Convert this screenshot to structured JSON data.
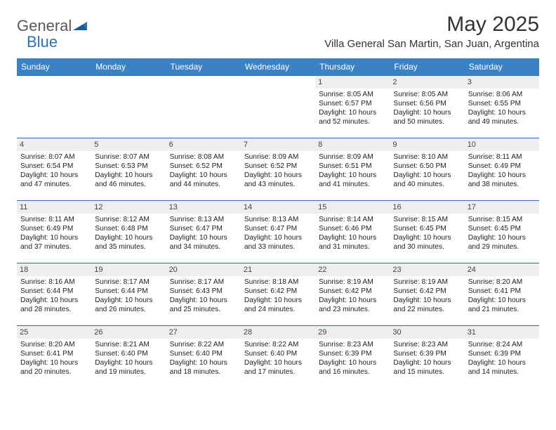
{
  "brand": {
    "text1": "General",
    "text2": "Blue"
  },
  "title": "May 2025",
  "location": "Villa General San Martin, San Juan, Argentina",
  "colors": {
    "header_bg": "#3a82c4",
    "header_text": "#ffffff",
    "row_divider": "#2a71b8",
    "daynum_bg": "#eeeeee",
    "brand_gray": "#5a5a5a",
    "brand_blue": "#2a71b8",
    "text": "#222222",
    "background": "#ffffff"
  },
  "typography": {
    "title_fontsize": 30,
    "location_fontsize": 15,
    "weekday_fontsize": 12,
    "daynum_fontsize": 11,
    "body_fontsize": 10.2
  },
  "weekdays": [
    "Sunday",
    "Monday",
    "Tuesday",
    "Wednesday",
    "Thursday",
    "Friday",
    "Saturday"
  ],
  "weeks": [
    [
      null,
      null,
      null,
      null,
      {
        "n": "1",
        "sunrise": "8:05 AM",
        "sunset": "6:57 PM",
        "dl": "10 hours and 52 minutes."
      },
      {
        "n": "2",
        "sunrise": "8:05 AM",
        "sunset": "6:56 PM",
        "dl": "10 hours and 50 minutes."
      },
      {
        "n": "3",
        "sunrise": "8:06 AM",
        "sunset": "6:55 PM",
        "dl": "10 hours and 49 minutes."
      }
    ],
    [
      {
        "n": "4",
        "sunrise": "8:07 AM",
        "sunset": "6:54 PM",
        "dl": "10 hours and 47 minutes."
      },
      {
        "n": "5",
        "sunrise": "8:07 AM",
        "sunset": "6:53 PM",
        "dl": "10 hours and 46 minutes."
      },
      {
        "n": "6",
        "sunrise": "8:08 AM",
        "sunset": "6:52 PM",
        "dl": "10 hours and 44 minutes."
      },
      {
        "n": "7",
        "sunrise": "8:09 AM",
        "sunset": "6:52 PM",
        "dl": "10 hours and 43 minutes."
      },
      {
        "n": "8",
        "sunrise": "8:09 AM",
        "sunset": "6:51 PM",
        "dl": "10 hours and 41 minutes."
      },
      {
        "n": "9",
        "sunrise": "8:10 AM",
        "sunset": "6:50 PM",
        "dl": "10 hours and 40 minutes."
      },
      {
        "n": "10",
        "sunrise": "8:11 AM",
        "sunset": "6:49 PM",
        "dl": "10 hours and 38 minutes."
      }
    ],
    [
      {
        "n": "11",
        "sunrise": "8:11 AM",
        "sunset": "6:49 PM",
        "dl": "10 hours and 37 minutes."
      },
      {
        "n": "12",
        "sunrise": "8:12 AM",
        "sunset": "6:48 PM",
        "dl": "10 hours and 35 minutes."
      },
      {
        "n": "13",
        "sunrise": "8:13 AM",
        "sunset": "6:47 PM",
        "dl": "10 hours and 34 minutes."
      },
      {
        "n": "14",
        "sunrise": "8:13 AM",
        "sunset": "6:47 PM",
        "dl": "10 hours and 33 minutes."
      },
      {
        "n": "15",
        "sunrise": "8:14 AM",
        "sunset": "6:46 PM",
        "dl": "10 hours and 31 minutes."
      },
      {
        "n": "16",
        "sunrise": "8:15 AM",
        "sunset": "6:45 PM",
        "dl": "10 hours and 30 minutes."
      },
      {
        "n": "17",
        "sunrise": "8:15 AM",
        "sunset": "6:45 PM",
        "dl": "10 hours and 29 minutes."
      }
    ],
    [
      {
        "n": "18",
        "sunrise": "8:16 AM",
        "sunset": "6:44 PM",
        "dl": "10 hours and 28 minutes."
      },
      {
        "n": "19",
        "sunrise": "8:17 AM",
        "sunset": "6:44 PM",
        "dl": "10 hours and 26 minutes."
      },
      {
        "n": "20",
        "sunrise": "8:17 AM",
        "sunset": "6:43 PM",
        "dl": "10 hours and 25 minutes."
      },
      {
        "n": "21",
        "sunrise": "8:18 AM",
        "sunset": "6:42 PM",
        "dl": "10 hours and 24 minutes."
      },
      {
        "n": "22",
        "sunrise": "8:19 AM",
        "sunset": "6:42 PM",
        "dl": "10 hours and 23 minutes."
      },
      {
        "n": "23",
        "sunrise": "8:19 AM",
        "sunset": "6:42 PM",
        "dl": "10 hours and 22 minutes."
      },
      {
        "n": "24",
        "sunrise": "8:20 AM",
        "sunset": "6:41 PM",
        "dl": "10 hours and 21 minutes."
      }
    ],
    [
      {
        "n": "25",
        "sunrise": "8:20 AM",
        "sunset": "6:41 PM",
        "dl": "10 hours and 20 minutes."
      },
      {
        "n": "26",
        "sunrise": "8:21 AM",
        "sunset": "6:40 PM",
        "dl": "10 hours and 19 minutes."
      },
      {
        "n": "27",
        "sunrise": "8:22 AM",
        "sunset": "6:40 PM",
        "dl": "10 hours and 18 minutes."
      },
      {
        "n": "28",
        "sunrise": "8:22 AM",
        "sunset": "6:40 PM",
        "dl": "10 hours and 17 minutes."
      },
      {
        "n": "29",
        "sunrise": "8:23 AM",
        "sunset": "6:39 PM",
        "dl": "10 hours and 16 minutes."
      },
      {
        "n": "30",
        "sunrise": "8:23 AM",
        "sunset": "6:39 PM",
        "dl": "10 hours and 15 minutes."
      },
      {
        "n": "31",
        "sunrise": "8:24 AM",
        "sunset": "6:39 PM",
        "dl": "10 hours and 14 minutes."
      }
    ]
  ],
  "labels": {
    "sunrise_prefix": "Sunrise: ",
    "sunset_prefix": "Sunset: ",
    "daylight_prefix": "Daylight: "
  }
}
